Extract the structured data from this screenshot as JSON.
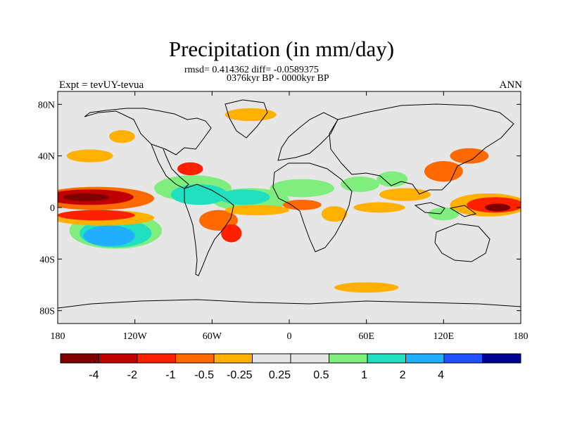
{
  "title": "Precipitation (in mm/day)",
  "stats_line": "rmsd= 0.414362 diff= -0.0589375",
  "period_line": "0376kyr BP - 0000kyr BP",
  "experiment": "Expt = tevUY-tevua",
  "season": "ANN",
  "map": {
    "projection": "cylindrical-equidistant",
    "lon_range": [
      -180,
      180
    ],
    "lat_range": [
      -90,
      90
    ],
    "background_color": "#e6e6e6",
    "coastline_color": "#000000",
    "x_ticks": [
      {
        "lon": -180,
        "label": "180"
      },
      {
        "lon": -120,
        "label": "120W"
      },
      {
        "lon": -60,
        "label": "60W"
      },
      {
        "lon": 0,
        "label": "0"
      },
      {
        "lon": 60,
        "label": "60E"
      },
      {
        "lon": 120,
        "label": "120E"
      },
      {
        "lon": 180,
        "label": "180"
      }
    ],
    "y_ticks": [
      {
        "lat": 80,
        "label": "80N"
      },
      {
        "lat": 40,
        "label": "40N"
      },
      {
        "lat": 0,
        "label": "0"
      },
      {
        "lat": -40,
        "label": "40S"
      },
      {
        "lat": -80,
        "label": "80S"
      }
    ],
    "anomaly_regions": [
      {
        "id": "cpac-north-wet",
        "lon": -155,
        "lat": 8,
        "rlon": 34,
        "rlat": 6,
        "cls": 1
      },
      {
        "id": "cpac-north-core",
        "lon": -158,
        "lat": 8,
        "rlon": 18,
        "rlat": 3,
        "cls": 0
      },
      {
        "id": "cpac-north-halo",
        "lon": -150,
        "lat": 7,
        "rlon": 45,
        "rlat": 9,
        "cls": 3
      },
      {
        "id": "cpac-south-wet",
        "lon": -150,
        "lat": -6,
        "rlon": 30,
        "rlat": 4,
        "cls": 2
      },
      {
        "id": "cpac-south-halo",
        "lon": -145,
        "lat": -8,
        "rlon": 40,
        "rlat": 6,
        "cls": 4
      },
      {
        "id": "spcz-wet",
        "lon": -140,
        "lat": -22,
        "rlon": 20,
        "rlat": 8,
        "cls": 9
      },
      {
        "id": "spcz-halo",
        "lon": -135,
        "lat": -20,
        "rlon": 28,
        "rlat": 11,
        "cls": 8
      },
      {
        "id": "spcz-fringe",
        "lon": -135,
        "lat": -18,
        "rlon": 36,
        "rlat": 14,
        "cls": 7
      },
      {
        "id": "nepac-dry",
        "lon": -155,
        "lat": 40,
        "rlon": 18,
        "rlat": 5,
        "cls": 4
      },
      {
        "id": "alaska-dry",
        "lon": -130,
        "lat": 55,
        "rlon": 10,
        "rlat": 5,
        "cls": 4
      },
      {
        "id": "caribbean-wet",
        "lon": -70,
        "lat": 10,
        "rlon": 22,
        "rlat": 8,
        "cls": 8
      },
      {
        "id": "caribbean-fringe",
        "lon": -75,
        "lat": 15,
        "rlon": 30,
        "rlat": 10,
        "cls": 7
      },
      {
        "id": "gulf-dry",
        "lon": -77,
        "lat": 30,
        "rlon": 10,
        "rlat": 5,
        "cls": 2
      },
      {
        "id": "amazon-dry",
        "lon": -55,
        "lat": -10,
        "rlon": 15,
        "rlat": 8,
        "cls": 3
      },
      {
        "id": "brazil-dry",
        "lon": -45,
        "lat": -20,
        "rlon": 8,
        "rlat": 7,
        "cls": 2
      },
      {
        "id": "atlantic-itcz-wet",
        "lon": -35,
        "lat": 8,
        "rlon": 20,
        "rlat": 6,
        "cls": 8
      },
      {
        "id": "atlantic-itcz-fringe",
        "lon": -30,
        "lat": 6,
        "rlon": 30,
        "rlat": 9,
        "cls": 7
      },
      {
        "id": "eq-atlantic-dry",
        "lon": -25,
        "lat": -2,
        "rlon": 25,
        "rlat": 4,
        "cls": 4
      },
      {
        "id": "sahel-wet",
        "lon": 10,
        "lat": 15,
        "rlon": 25,
        "rlat": 7,
        "cls": 7
      },
      {
        "id": "gulf-guinea-dry",
        "lon": 10,
        "lat": 2,
        "rlon": 15,
        "rlat": 4,
        "cls": 3
      },
      {
        "id": "east-africa-dry",
        "lon": 35,
        "lat": -5,
        "rlon": 10,
        "rlat": 6,
        "cls": 4
      },
      {
        "id": "arabia-wet",
        "lon": 55,
        "lat": 18,
        "rlon": 15,
        "rlat": 6,
        "cls": 7
      },
      {
        "id": "india-wet",
        "lon": 80,
        "lat": 22,
        "rlon": 12,
        "rlat": 6,
        "cls": 7
      },
      {
        "id": "south-asia-dry",
        "lon": 90,
        "lat": 10,
        "rlon": 20,
        "rlat": 5,
        "cls": 4
      },
      {
        "id": "indian-ocean-dry",
        "lon": 70,
        "lat": 0,
        "rlon": 20,
        "rlat": 4,
        "cls": 4
      },
      {
        "id": "east-asia-dry",
        "lon": 120,
        "lat": 28,
        "rlon": 15,
        "rlat": 8,
        "cls": 3
      },
      {
        "id": "japan-dry",
        "lon": 140,
        "lat": 40,
        "rlon": 15,
        "rlat": 6,
        "cls": 3
      },
      {
        "id": "warm-pool-halo",
        "lon": 155,
        "lat": 2,
        "rlon": 30,
        "rlat": 9,
        "cls": 4
      },
      {
        "id": "warm-pool-dry",
        "lon": 160,
        "lat": 2,
        "rlon": 22,
        "rlat": 6,
        "cls": 2
      },
      {
        "id": "warm-pool-core",
        "lon": 162,
        "lat": 0,
        "rlon": 10,
        "rlat": 3,
        "cls": 0
      },
      {
        "id": "maritime-wet",
        "lon": 120,
        "lat": -5,
        "rlon": 12,
        "rlat": 5,
        "cls": 7
      },
      {
        "id": "southern-ocean-dry",
        "lon": 60,
        "lat": -62,
        "rlon": 25,
        "rlat": 4,
        "cls": 4
      },
      {
        "id": "arctic-dry",
        "lon": -30,
        "lat": 72,
        "rlon": 20,
        "rlat": 5,
        "cls": 4
      }
    ]
  },
  "colorbar": {
    "colors": [
      "#7f0000",
      "#c00000",
      "#ff2000",
      "#ff6a00",
      "#ffb000",
      "#e6e6e6",
      "#e6e6e6",
      "#7fee7f",
      "#20e0c0",
      "#20b0ff",
      "#2050ff",
      "#000090"
    ],
    "labels": [
      "-4",
      "-2",
      "-1",
      "-0.5",
      "-0.25",
      "0.25",
      "0.5",
      "1",
      "2",
      "4"
    ]
  }
}
